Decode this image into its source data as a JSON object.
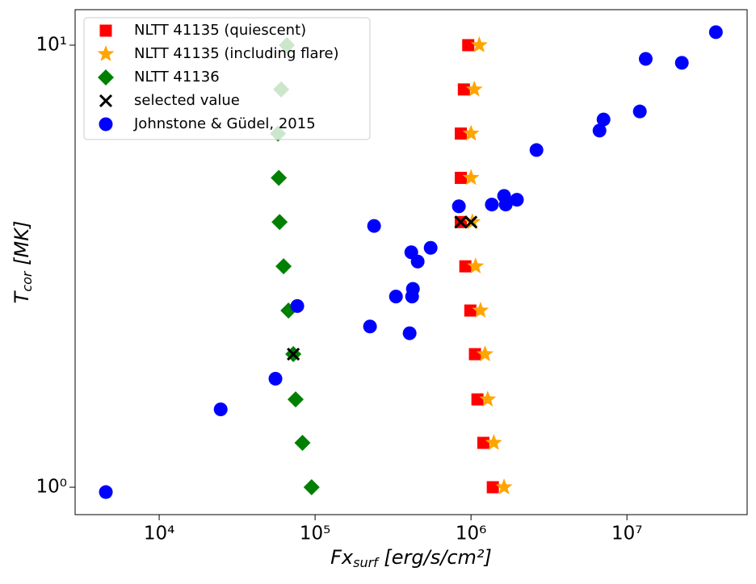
{
  "chart_data": {
    "type": "scatter",
    "xlog": true,
    "ylog": true,
    "xlabel": [
      "Fx",
      "surf",
      " [erg/s/cm²]"
    ],
    "ylabel": [
      "T",
      "cor",
      " [MK]"
    ],
    "xlim": [
      2890,
      59000000
    ],
    "ylim": [
      0.867,
      12.03
    ],
    "xticks": [
      {
        "value": 10000,
        "label": "10⁴"
      },
      {
        "value": 100000,
        "label": "10⁵"
      },
      {
        "value": 1000000,
        "label": "10⁶"
      },
      {
        "value": 10000000,
        "label": "10⁷"
      }
    ],
    "yticks": [
      {
        "value": 1,
        "label": "10⁰"
      },
      {
        "value": 10,
        "label": "10¹"
      }
    ],
    "legend": "upper left",
    "series": [
      {
        "name": "NLTT 41135 (quiescent)",
        "color": "#ff0000",
        "marker": "square",
        "x": [
          1380000,
          1200000,
          1100000,
          1060000,
          990000,
          920000,
          860000,
          860000,
          860000,
          900000,
          960000
        ],
        "y": [
          1,
          1.26,
          1.58,
          2.0,
          2.51,
          3.16,
          3.98,
          5.01,
          6.31,
          7.94,
          10
        ]
      },
      {
        "name": "NLTT 41135 (including flare)",
        "color": "#ffa500",
        "marker": "star",
        "x": [
          1630000,
          1400000,
          1280000,
          1230000,
          1150000,
          1070000,
          1020000,
          1000000,
          1000000,
          1050000,
          1130000
        ],
        "y": [
          1,
          1.26,
          1.58,
          2.0,
          2.51,
          3.16,
          3.98,
          5.01,
          6.31,
          7.94,
          10
        ]
      },
      {
        "name": "NLTT 41136",
        "color": "#008000",
        "marker": "diamond",
        "x": [
          95000,
          83000,
          75000,
          72500,
          67500,
          62800,
          59200,
          58500,
          57800,
          60600,
          65900
        ],
        "y": [
          1,
          1.26,
          1.58,
          2.0,
          2.51,
          3.16,
          3.98,
          5.01,
          6.31,
          7.94,
          10
        ]
      },
      {
        "name": "selected value",
        "color": "#000000",
        "marker": "x",
        "x": [
          72500,
          860000,
          1000000
        ],
        "y": [
          2.0,
          3.98,
          3.98
        ]
      },
      {
        "name": "Johnstone & Güdel, 2015",
        "color": "#0000ff",
        "marker": "circle",
        "x": [
          4550,
          24800,
          55700,
          76900,
          225000,
          239000,
          330000,
          404000,
          419000,
          424000,
          414000,
          455000,
          551000,
          836000,
          1360000,
          1630000,
          1670000,
          1970000,
          2630000,
          6670000,
          7080000,
          12100000,
          13200000,
          22500000,
          37200000
        ],
        "y": [
          0.975,
          1.5,
          1.76,
          2.57,
          2.31,
          3.9,
          2.7,
          2.23,
          2.7,
          2.81,
          3.4,
          3.24,
          3.48,
          4.32,
          4.36,
          4.56,
          4.36,
          4.47,
          5.79,
          6.41,
          6.79,
          7.08,
          9.31,
          9.12,
          10.7
        ]
      }
    ]
  }
}
